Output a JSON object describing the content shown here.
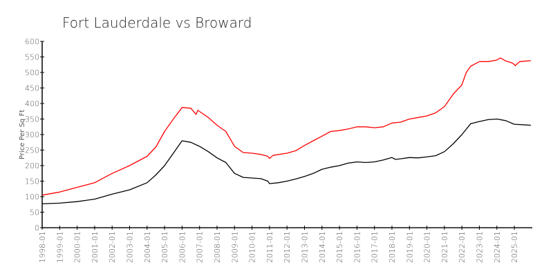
{
  "chart_data": {
    "type": "line",
    "title": "Fort Lauderdale vs Broward",
    "xlabel": "",
    "ylabel": "Price Per Sq Ft",
    "ylim": [
      0,
      600
    ],
    "xlim": [
      1998.0,
      2025.95
    ],
    "yticks": [
      0,
      50,
      100,
      150,
      200,
      250,
      300,
      350,
      400,
      450,
      500,
      550,
      600
    ],
    "xticks": [
      "1998-01",
      "1999-01",
      "2000-01",
      "2001-01",
      "2002-01",
      "2003-01",
      "2004-01",
      "2005-01",
      "2006-01",
      "2007-01",
      "2008-01",
      "2009-01",
      "2010-01",
      "2011-01",
      "2012-01",
      "2013-01",
      "2014-01",
      "2015-01",
      "2016-01",
      "2017-01",
      "2018-01",
      "2019-01",
      "2020-01",
      "2021-01",
      "2022-01",
      "2023-01",
      "2024-01",
      "2025-01"
    ],
    "grid": false,
    "legend": "none",
    "series": [
      {
        "name": "Fort Lauderdale",
        "color": "#ff0000",
        "points": [
          [
            1998.0,
            105
          ],
          [
            1999.0,
            115
          ],
          [
            2000.0,
            130
          ],
          [
            2001.0,
            145
          ],
          [
            2002.0,
            175
          ],
          [
            2003.0,
            200
          ],
          [
            2004.0,
            230
          ],
          [
            2004.5,
            260
          ],
          [
            2005.0,
            310
          ],
          [
            2005.5,
            350
          ],
          [
            2006.0,
            387
          ],
          [
            2006.5,
            385
          ],
          [
            2006.8,
            365
          ],
          [
            2006.9,
            378
          ],
          [
            2007.5,
            355
          ],
          [
            2008.0,
            330
          ],
          [
            2008.5,
            310
          ],
          [
            2009.0,
            262
          ],
          [
            2009.5,
            242
          ],
          [
            2010.0,
            240
          ],
          [
            2010.5,
            236
          ],
          [
            2010.9,
            230
          ],
          [
            2011.0,
            223
          ],
          [
            2011.2,
            233
          ],
          [
            2012.0,
            240
          ],
          [
            2012.5,
            248
          ],
          [
            2013.0,
            265
          ],
          [
            2013.5,
            280
          ],
          [
            2014.0,
            295
          ],
          [
            2014.5,
            310
          ],
          [
            2015.0,
            313
          ],
          [
            2015.5,
            318
          ],
          [
            2016.0,
            325
          ],
          [
            2016.5,
            325
          ],
          [
            2017.0,
            322
          ],
          [
            2017.5,
            325
          ],
          [
            2018.0,
            337
          ],
          [
            2018.5,
            340
          ],
          [
            2019.0,
            350
          ],
          [
            2019.5,
            355
          ],
          [
            2020.0,
            360
          ],
          [
            2020.5,
            370
          ],
          [
            2021.0,
            390
          ],
          [
            2021.5,
            430
          ],
          [
            2022.0,
            460
          ],
          [
            2022.25,
            500
          ],
          [
            2022.5,
            520
          ],
          [
            2023.0,
            535
          ],
          [
            2023.5,
            535
          ],
          [
            2024.0,
            540
          ],
          [
            2024.2,
            547
          ],
          [
            2024.5,
            537
          ],
          [
            2024.9,
            530
          ],
          [
            2025.05,
            522
          ],
          [
            2025.3,
            535
          ],
          [
            2025.95,
            538
          ]
        ]
      },
      {
        "name": "Broward",
        "color": "#000000",
        "points": [
          [
            1998.0,
            77
          ],
          [
            1999.0,
            79
          ],
          [
            2000.0,
            84
          ],
          [
            2001.0,
            92
          ],
          [
            2002.0,
            108
          ],
          [
            2003.0,
            122
          ],
          [
            2004.0,
            145
          ],
          [
            2004.5,
            170
          ],
          [
            2005.0,
            200
          ],
          [
            2005.5,
            240
          ],
          [
            2006.0,
            280
          ],
          [
            2006.5,
            275
          ],
          [
            2007.0,
            262
          ],
          [
            2007.5,
            245
          ],
          [
            2008.0,
            225
          ],
          [
            2008.5,
            210
          ],
          [
            2009.0,
            175
          ],
          [
            2009.5,
            162
          ],
          [
            2010.0,
            160
          ],
          [
            2010.5,
            158
          ],
          [
            2010.9,
            150
          ],
          [
            2011.0,
            142
          ],
          [
            2011.5,
            145
          ],
          [
            2012.0,
            150
          ],
          [
            2012.5,
            157
          ],
          [
            2013.0,
            165
          ],
          [
            2013.5,
            175
          ],
          [
            2014.0,
            188
          ],
          [
            2014.5,
            195
          ],
          [
            2015.0,
            200
          ],
          [
            2015.5,
            208
          ],
          [
            2016.0,
            212
          ],
          [
            2016.5,
            210
          ],
          [
            2017.0,
            212
          ],
          [
            2017.5,
            218
          ],
          [
            2018.0,
            226
          ],
          [
            2018.2,
            220
          ],
          [
            2018.5,
            222
          ],
          [
            2019.0,
            226
          ],
          [
            2019.5,
            225
          ],
          [
            2020.0,
            228
          ],
          [
            2020.5,
            232
          ],
          [
            2021.0,
            245
          ],
          [
            2021.5,
            270
          ],
          [
            2022.0,
            300
          ],
          [
            2022.5,
            335
          ],
          [
            2023.0,
            342
          ],
          [
            2023.5,
            348
          ],
          [
            2024.0,
            350
          ],
          [
            2024.5,
            345
          ],
          [
            2025.0,
            333
          ],
          [
            2025.95,
            330
          ]
        ]
      }
    ]
  }
}
